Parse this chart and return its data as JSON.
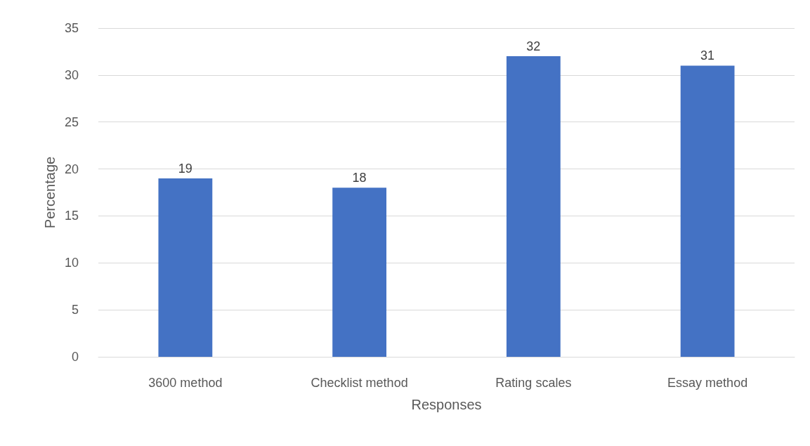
{
  "chart_data": {
    "type": "bar",
    "xlabel": "Responses",
    "ylabel": "Percentage",
    "categories": [
      "3600 method",
      "Checklist method",
      "Rating scales",
      "Essay method"
    ],
    "values": [
      19,
      18,
      32,
      31
    ],
    "color": "#4472c4",
    "ylim": [
      0,
      35
    ],
    "yticks": [
      0,
      5,
      10,
      15,
      20,
      25,
      30,
      35
    ],
    "grid": "y",
    "data_labels": true
  }
}
